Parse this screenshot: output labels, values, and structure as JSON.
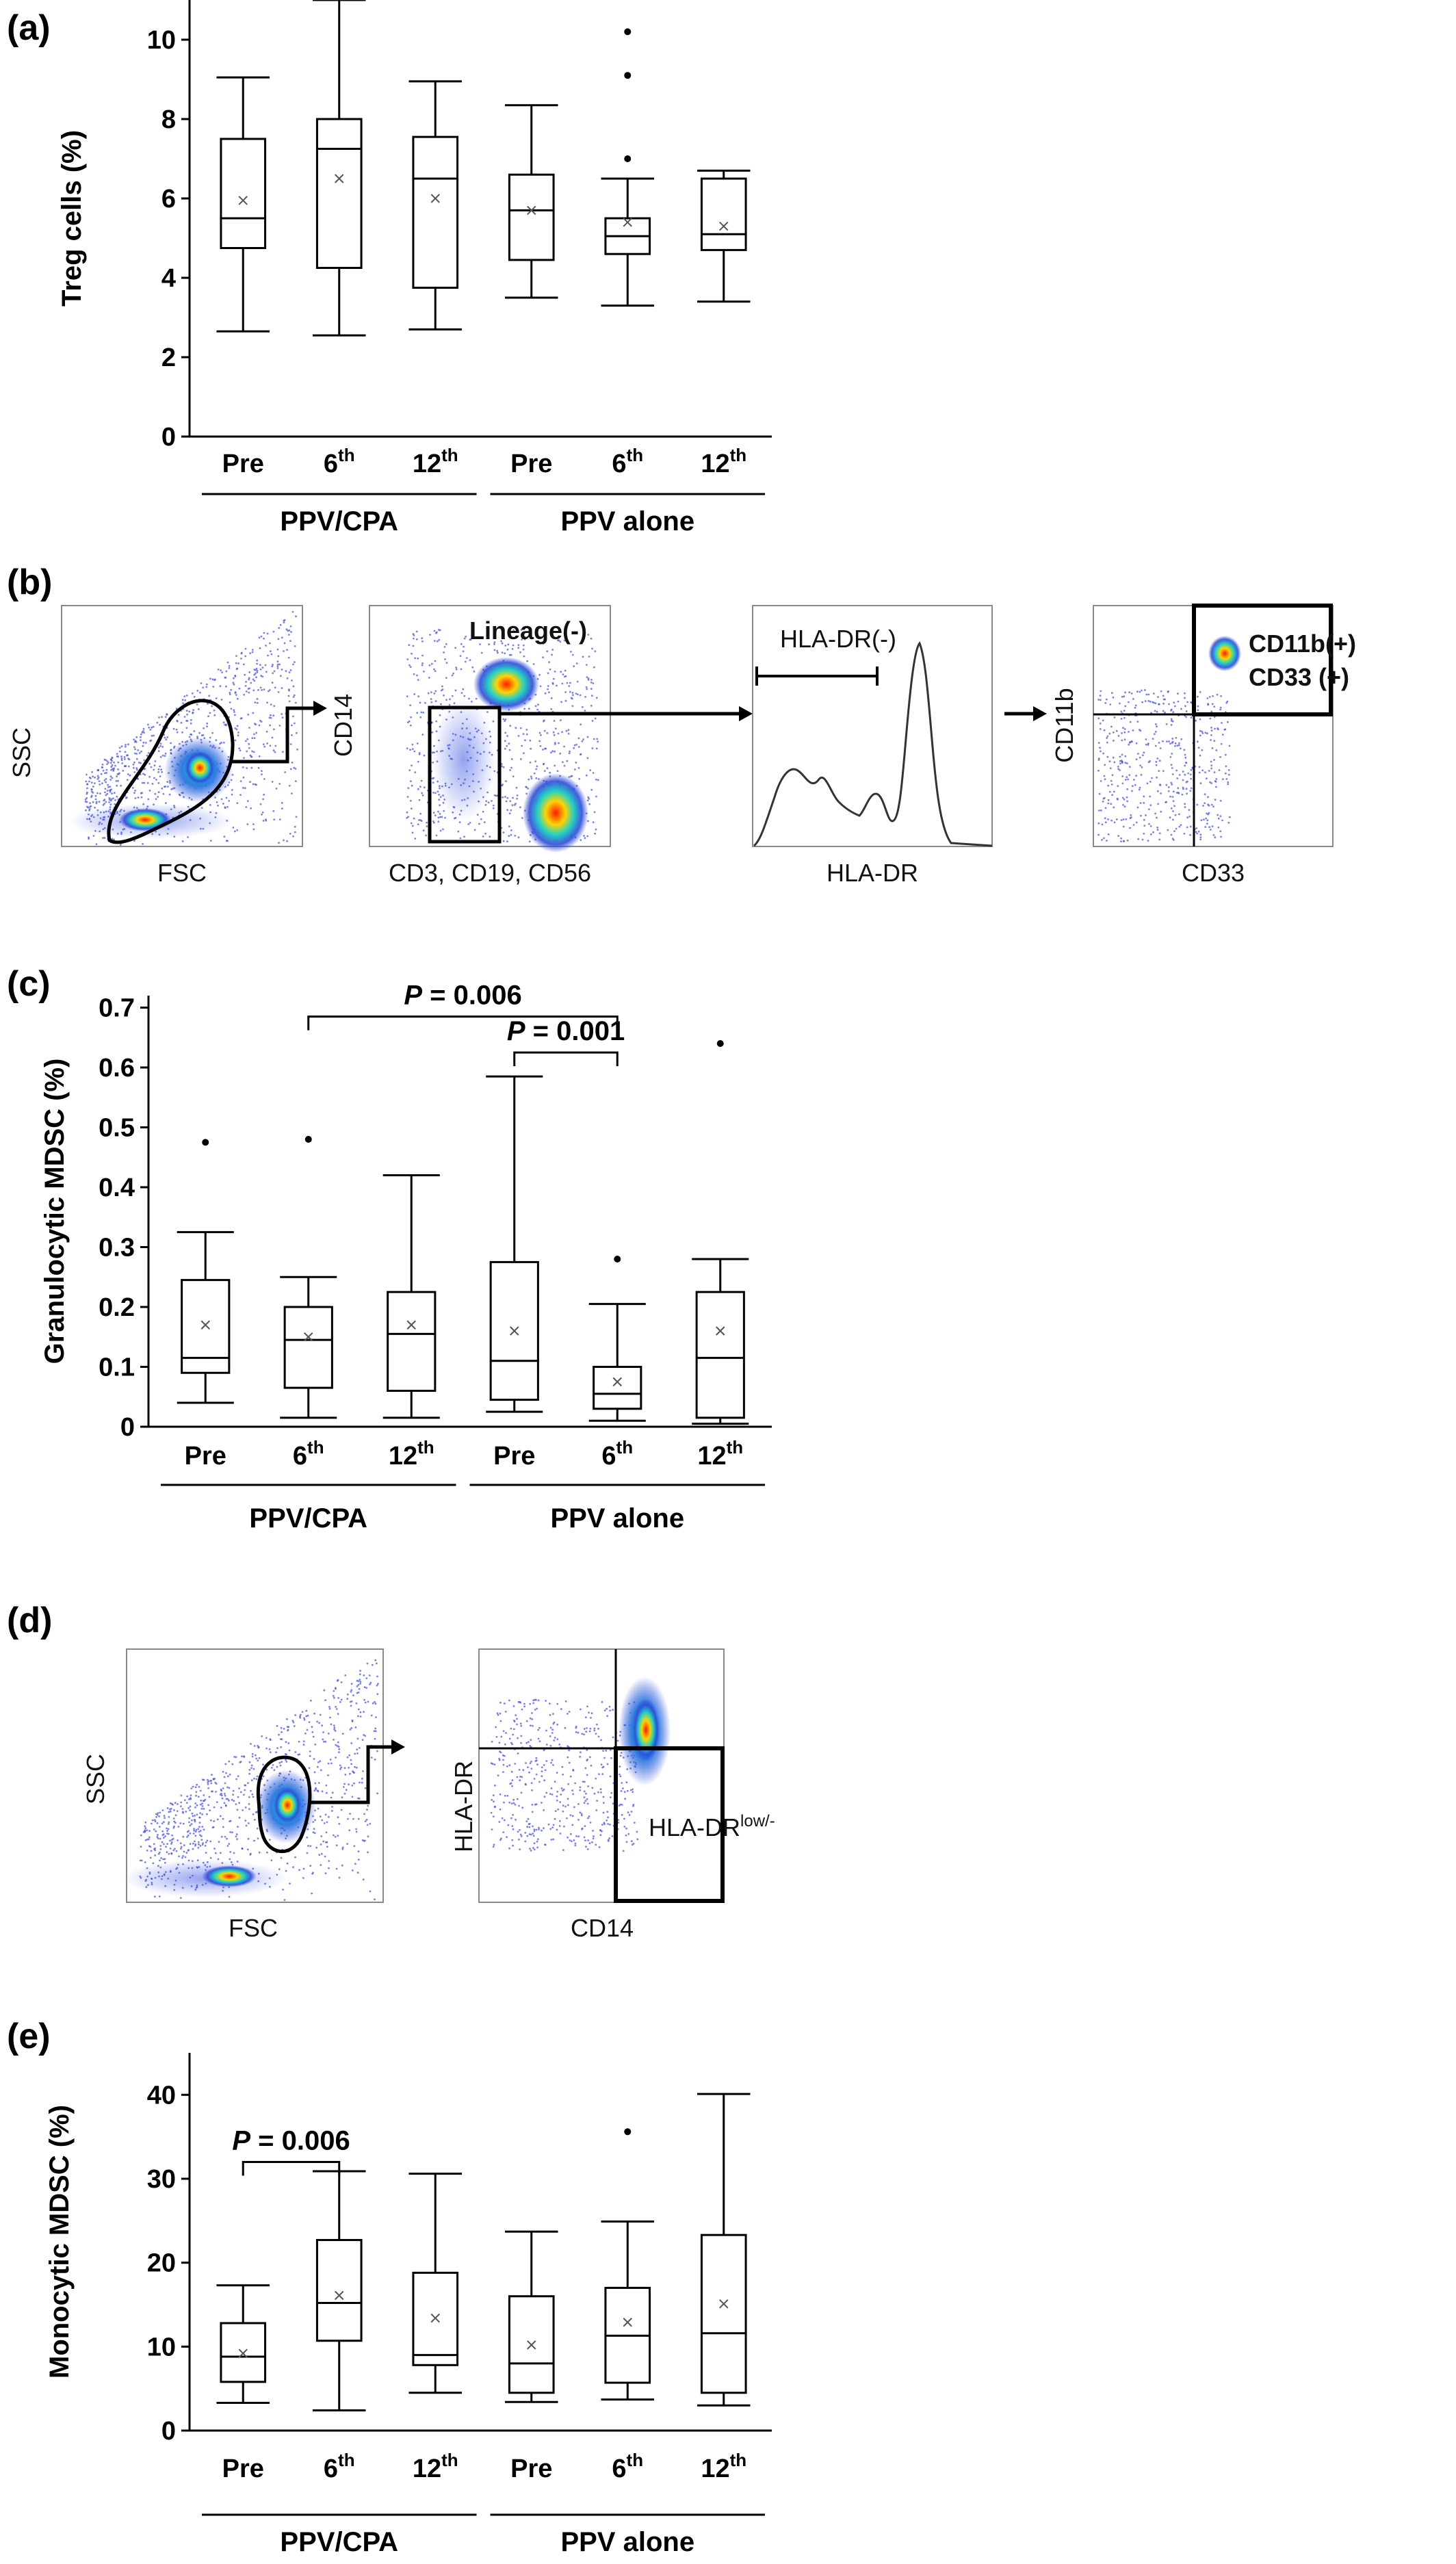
{
  "panels": [
    "(a)",
    "(b)",
    "(c)",
    "(d)",
    "(e)"
  ],
  "group_labels": [
    "PPV/CPA",
    "PPV alone"
  ],
  "chart_data": [
    {
      "id": "a",
      "type": "box",
      "ylabel": "Treg cells (%)",
      "ylim": [
        0,
        11
      ],
      "yticks": [
        0,
        2,
        4,
        6,
        8,
        10
      ],
      "categories": [
        {
          "base": "Pre",
          "sup": ""
        },
        {
          "base": "6",
          "sup": "th"
        },
        {
          "base": "12",
          "sup": "th"
        },
        {
          "base": "Pre",
          "sup": ""
        },
        {
          "base": "6",
          "sup": "th"
        },
        {
          "base": "12",
          "sup": "th"
        }
      ],
      "groups": [
        "PPV/CPA",
        "PPV alone"
      ],
      "boxes": [
        {
          "min": 2.65,
          "q1": 4.75,
          "median": 5.5,
          "q3": 7.5,
          "max": 9.05,
          "mean": 5.95,
          "outliers": []
        },
        {
          "min": 2.55,
          "q1": 4.25,
          "median": 7.25,
          "q3": 8.0,
          "max": 11.0,
          "mean": 6.5,
          "outliers": []
        },
        {
          "min": 2.7,
          "q1": 3.75,
          "median": 6.5,
          "q3": 7.55,
          "max": 8.95,
          "mean": 6.0,
          "outliers": []
        },
        {
          "min": 3.5,
          "q1": 4.45,
          "median": 5.7,
          "q3": 6.6,
          "max": 8.35,
          "mean": 5.7,
          "outliers": []
        },
        {
          "min": 3.3,
          "q1": 4.6,
          "median": 5.05,
          "q3": 5.5,
          "max": 6.5,
          "mean": 5.4,
          "outliers": [
            7.0,
            9.1,
            10.2
          ]
        },
        {
          "min": 3.4,
          "q1": 4.7,
          "median": 5.1,
          "q3": 6.5,
          "max": 6.7,
          "mean": 5.3,
          "outliers": []
        }
      ],
      "annotations": []
    },
    {
      "id": "c",
      "type": "box",
      "ylabel": "Granulocytic MDSC (%)",
      "ylim": [
        0,
        0.72
      ],
      "yticks": [
        0,
        0.1,
        0.2,
        0.3,
        0.4,
        0.5,
        0.6,
        0.7
      ],
      "categories": [
        {
          "base": "Pre",
          "sup": ""
        },
        {
          "base": "6",
          "sup": "th"
        },
        {
          "base": "12",
          "sup": "th"
        },
        {
          "base": "Pre",
          "sup": ""
        },
        {
          "base": "6",
          "sup": "th"
        },
        {
          "base": "12",
          "sup": "th"
        }
      ],
      "groups": [
        "PPV/CPA",
        "PPV alone"
      ],
      "boxes": [
        {
          "min": 0.04,
          "q1": 0.09,
          "median": 0.115,
          "q3": 0.245,
          "max": 0.325,
          "mean": 0.17,
          "outliers": [
            0.475
          ]
        },
        {
          "min": 0.015,
          "q1": 0.065,
          "median": 0.145,
          "q3": 0.2,
          "max": 0.25,
          "mean": 0.15,
          "outliers": [
            0.48
          ]
        },
        {
          "min": 0.015,
          "q1": 0.06,
          "median": 0.155,
          "q3": 0.225,
          "max": 0.42,
          "mean": 0.17,
          "outliers": []
        },
        {
          "min": 0.025,
          "q1": 0.045,
          "median": 0.11,
          "q3": 0.275,
          "max": 0.585,
          "mean": 0.16,
          "outliers": []
        },
        {
          "min": 0.01,
          "q1": 0.03,
          "median": 0.055,
          "q3": 0.1,
          "max": 0.205,
          "mean": 0.075,
          "outliers": [
            0.28
          ]
        },
        {
          "min": 0.005,
          "q1": 0.015,
          "median": 0.115,
          "q3": 0.225,
          "max": 0.28,
          "mean": 0.16,
          "outliers": [
            0.64
          ]
        }
      ],
      "annotations": [
        {
          "from": 1,
          "to": 4,
          "italic": "P",
          "text": " = 0.006",
          "level": 0.685
        },
        {
          "from": 3,
          "to": 4,
          "italic": "P",
          "text": " = 0.001",
          "level": 0.625
        }
      ]
    },
    {
      "id": "e",
      "type": "box",
      "ylabel": "Monocytic MDSC (%)",
      "ylim": [
        0,
        45
      ],
      "yticks": [
        0,
        10,
        20,
        30,
        40
      ],
      "categories": [
        {
          "base": "Pre",
          "sup": ""
        },
        {
          "base": "6",
          "sup": "th"
        },
        {
          "base": "12",
          "sup": "th"
        },
        {
          "base": "Pre",
          "sup": ""
        },
        {
          "base": "6",
          "sup": "th"
        },
        {
          "base": "12",
          "sup": "th"
        }
      ],
      "groups": [
        "PPV/CPA",
        "PPV alone"
      ],
      "boxes": [
        {
          "min": 3.3,
          "q1": 5.8,
          "median": 8.8,
          "q3": 12.8,
          "max": 17.3,
          "mean": 9.2,
          "outliers": []
        },
        {
          "min": 2.4,
          "q1": 10.7,
          "median": 15.2,
          "q3": 22.7,
          "max": 30.9,
          "mean": 16.1,
          "outliers": []
        },
        {
          "min": 4.5,
          "q1": 7.8,
          "median": 9.0,
          "q3": 18.8,
          "max": 30.6,
          "mean": 13.4,
          "outliers": []
        },
        {
          "min": 3.4,
          "q1": 4.5,
          "median": 8.0,
          "q3": 16.0,
          "max": 23.7,
          "mean": 10.2,
          "outliers": []
        },
        {
          "min": 3.7,
          "q1": 5.7,
          "median": 11.3,
          "q3": 17.0,
          "max": 24.9,
          "mean": 12.9,
          "outliers": [
            35.6
          ]
        },
        {
          "min": 3.0,
          "q1": 4.5,
          "median": 11.6,
          "q3": 23.3,
          "max": 40.1,
          "mean": 15.1,
          "outliers": []
        }
      ],
      "annotations": [
        {
          "from": 0,
          "to": 1,
          "italic": "P",
          "text": " = 0.006",
          "level": 32.0
        }
      ]
    }
  ],
  "flow_b": {
    "plots": [
      {
        "ylabel": "SSC",
        "xlabel": "FSC",
        "gate_label": ""
      },
      {
        "ylabel": "CD14",
        "xlabel": "CD3, CD19, CD56",
        "gate_label": "Lineage(-)"
      },
      {
        "ylabel": "",
        "xlabel": "HLA-DR",
        "gate_label": "HLA-DR(-)"
      },
      {
        "ylabel": "CD11b",
        "xlabel": "CD33",
        "gate_label": "CD11b(+)",
        "gate_label_2": "CD33 (+)"
      }
    ]
  },
  "flow_d": {
    "plots": [
      {
        "ylabel": "SSC",
        "xlabel": "FSC"
      },
      {
        "ylabel": "HLA-DR",
        "xlabel": "CD14",
        "gate_label": "HLA-DR",
        "gate_label_sup": "low/-"
      }
    ]
  },
  "colors": {
    "axis": "#000000",
    "density_low": "#2a3cd8",
    "density_mid": "#1fd0c8",
    "density_high": "#ff2a10"
  }
}
